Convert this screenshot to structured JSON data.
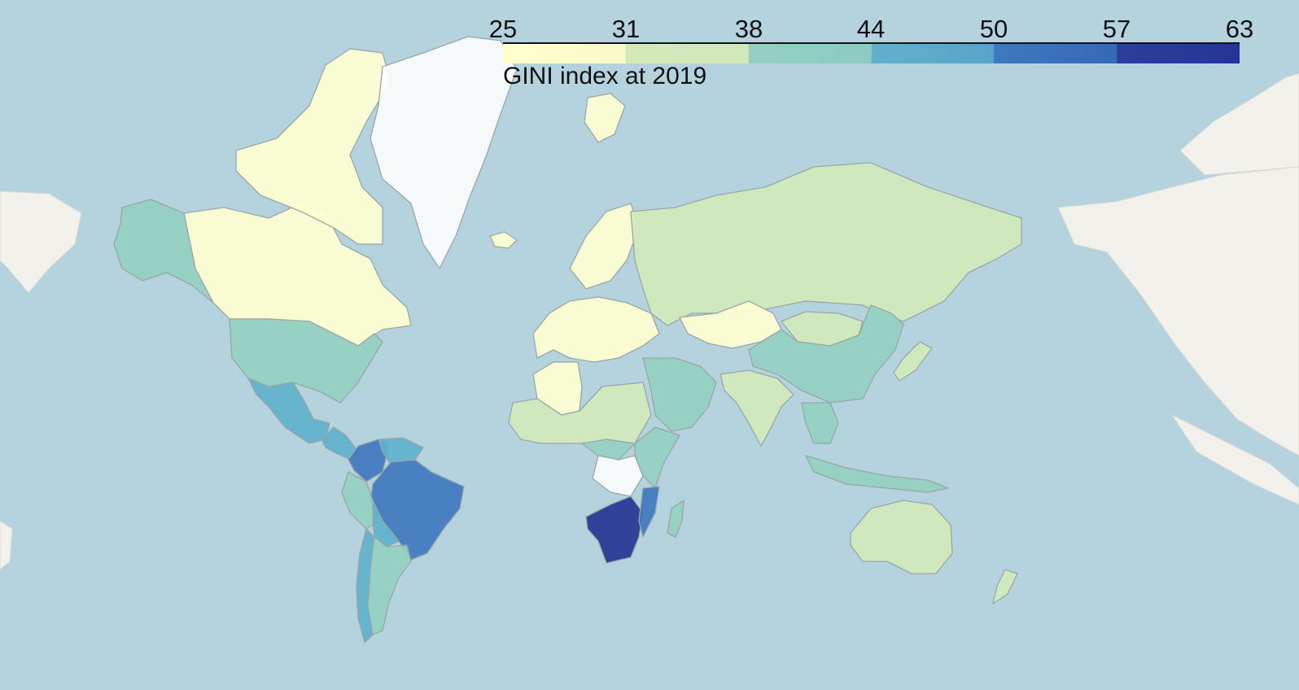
{
  "legend": {
    "title": "GINI index at 2019",
    "ticks": [
      "25",
      "31",
      "38",
      "44",
      "50",
      "57",
      "63"
    ],
    "range": [
      25,
      63
    ],
    "colors": [
      "#ffffd0",
      "#d3e9bb",
      "#95d0c1",
      "#61b1cc",
      "#3f78be",
      "#253494"
    ]
  },
  "colors": {
    "ocean": "#b4d3df",
    "land_neighbor": "#f3f1ec",
    "no_data": "#fcfcfc",
    "border": "#9aa6a6"
  },
  "countries": [
    {
      "name": "Canada",
      "value": 30
    },
    {
      "name": "Greenland",
      "value": null
    },
    {
      "name": "Alaska",
      "value": 40
    },
    {
      "name": "United States",
      "value": 41
    },
    {
      "name": "Mexico",
      "value": 46
    },
    {
      "name": "Central America",
      "value": 48
    },
    {
      "name": "Colombia",
      "value": 51
    },
    {
      "name": "Venezuela",
      "value": 45
    },
    {
      "name": "Brazil",
      "value": 53
    },
    {
      "name": "Peru",
      "value": 42
    },
    {
      "name": "Bolivia",
      "value": 46
    },
    {
      "name": "Chile",
      "value": 44
    },
    {
      "name": "Argentina",
      "value": 42
    },
    {
      "name": "Western Europe",
      "value": 31
    },
    {
      "name": "Scandinavia",
      "value": 28
    },
    {
      "name": "Russia",
      "value": 37
    },
    {
      "name": "Kazakhstan",
      "value": 28
    },
    {
      "name": "Mongolia",
      "value": 33
    },
    {
      "name": "China",
      "value": 38
    },
    {
      "name": "India",
      "value": 35
    },
    {
      "name": "Middle East",
      "value": 38
    },
    {
      "name": "Algeria",
      "value": 28
    },
    {
      "name": "West Africa",
      "value": 36
    },
    {
      "name": "Central Africa",
      "value": 42
    },
    {
      "name": "DR Congo",
      "value": null
    },
    {
      "name": "East Africa",
      "value": 40
    },
    {
      "name": "Southern Africa",
      "value": 61
    },
    {
      "name": "Mozambique",
      "value": 54
    },
    {
      "name": "Madagascar",
      "value": 42
    },
    {
      "name": "Australia",
      "value": 34
    },
    {
      "name": "New Zealand",
      "value": 33
    },
    {
      "name": "Japan",
      "value": 33
    },
    {
      "name": "Southeast Asia",
      "value": 38
    },
    {
      "name": "Indonesia",
      "value": 38
    },
    {
      "name": "Svalbard",
      "value": 28
    }
  ]
}
